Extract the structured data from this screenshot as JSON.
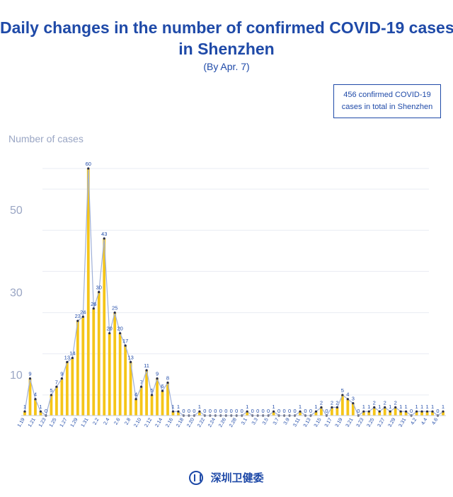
{
  "header": {
    "title_line1": "Daily changes in the number of confirmed COVID-19 cases",
    "title_line2": "in Shenzhen",
    "subtitle": "(By Apr. 7)",
    "total_line1": "456 confirmed COVID-19",
    "total_line2": "cases in total in Shenzhen"
  },
  "footer": {
    "org_name": "深圳卫健委",
    "logo_icon": "health-commission-logo-icon"
  },
  "colors": {
    "bar": "#f5c518",
    "line": "#9fb0d8",
    "point": "#2a2f4a",
    "axis_text": "#9aa6c4",
    "label": "#1f4aa8",
    "grid": "#e9ecf3"
  },
  "chart_data": {
    "type": "bar",
    "overlay": "line",
    "ylabel": "Number of cases",
    "ylim": [
      0,
      60
    ],
    "yticks": [
      10,
      30,
      50
    ],
    "grid": true,
    "categories": [
      "1.19",
      "1.20",
      "1.21",
      "1.22",
      "1.23",
      "1.24",
      "1.25",
      "1.26",
      "1.27",
      "1.28",
      "1.29",
      "1.30",
      "1.31",
      "2.1",
      "2.2",
      "2.3",
      "2.4",
      "2.5",
      "2.6",
      "2.7",
      "2.8",
      "2.9",
      "2.10",
      "2.11",
      "2.12",
      "2.13",
      "2.14",
      "2.15",
      "2.16",
      "2.17",
      "2.18",
      "2.19",
      "2.20",
      "2.21",
      "2.22",
      "2.23",
      "2.24",
      "2.25",
      "2.26",
      "2.27",
      "2.28",
      "2.29",
      "3.1",
      "3.2",
      "3.3",
      "3.4",
      "3.5",
      "3.6",
      "3.7",
      "3.8",
      "3.9",
      "3.10",
      "3.11",
      "3.12",
      "3.13",
      "3.14",
      "3.15",
      "3.16",
      "3.17",
      "3.18",
      "3.19",
      "3.20",
      "3.21",
      "3.22",
      "3.23",
      "3.24",
      "3.25",
      "3.26",
      "3.27",
      "3.28",
      "3.29",
      "3.30",
      "3.31",
      "4.1",
      "4.2",
      "4.3",
      "4.4",
      "4.5",
      "4.6",
      "4.7"
    ],
    "tick_labels": [
      "1.19",
      "1.21",
      "1.23",
      "1.25",
      "1.27",
      "1.29",
      "1.31",
      "2.2",
      "2.4",
      "2.6",
      "2.8",
      "2.10",
      "2.12",
      "2.14",
      "2.16",
      "2.18",
      "2.20",
      "2.22",
      "2.24",
      "2.26",
      "2.28",
      "3.1",
      "3.3",
      "3.5",
      "3.7",
      "3.9",
      "3.11",
      "3.13",
      "3.15",
      "3.17",
      "3.19",
      "3.21",
      "3.23",
      "3.25",
      "3.27",
      "3.29",
      "3.31",
      "4.2",
      "4.4",
      "4.6"
    ],
    "values": [
      1,
      9,
      4,
      1,
      0,
      5,
      7,
      9,
      13,
      14,
      23,
      24,
      60,
      26,
      30,
      43,
      20,
      25,
      20,
      17,
      13,
      4,
      7,
      11,
      5,
      9,
      6,
      8,
      1,
      1,
      0,
      0,
      0,
      1,
      0,
      0,
      0,
      0,
      0,
      0,
      0,
      0,
      1,
      0,
      0,
      0,
      0,
      1,
      0,
      0,
      0,
      0,
      1,
      0,
      0,
      1,
      2,
      0,
      2,
      2,
      5,
      4,
      3,
      0,
      1,
      1,
      2,
      1,
      2,
      1,
      2,
      1,
      1,
      0,
      1,
      1,
      1,
      1,
      0,
      1
    ]
  }
}
